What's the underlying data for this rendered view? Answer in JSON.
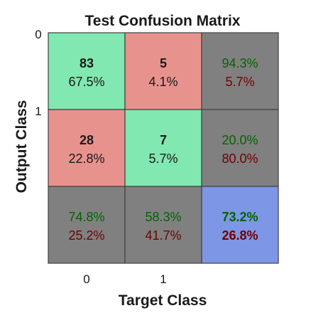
{
  "chart_data": {
    "type": "heatmap",
    "title": "Test Confusion Matrix",
    "xlabel": "Target Class",
    "ylabel": "Output Class",
    "x_ticks": [
      "0",
      "1"
    ],
    "y_ticks": [
      "0",
      "1"
    ],
    "cells": [
      [
        {
          "count": "83",
          "pct": "67.5%"
        },
        {
          "count": "5",
          "pct": "4.1%"
        }
      ],
      [
        {
          "count": "28",
          "pct": "22.8%"
        },
        {
          "count": "7",
          "pct": "5.7%"
        }
      ]
    ],
    "row_summary": [
      {
        "correct": "94.3%",
        "wrong": "5.7%"
      },
      {
        "correct": "20.0%",
        "wrong": "80.0%"
      }
    ],
    "col_summary": [
      {
        "correct": "74.8%",
        "wrong": "25.2%"
      },
      {
        "correct": "58.3%",
        "wrong": "41.7%"
      }
    ],
    "overall": {
      "correct": "73.2%",
      "wrong": "26.8%"
    },
    "colors": {
      "correct_cell": "#80e8b0",
      "wrong_cell": "#e8928e",
      "summary_cell": "#808080",
      "overall_cell": "#7d96e6",
      "correct_text": "#006400",
      "wrong_text": "#700000",
      "border": "#404040"
    }
  }
}
